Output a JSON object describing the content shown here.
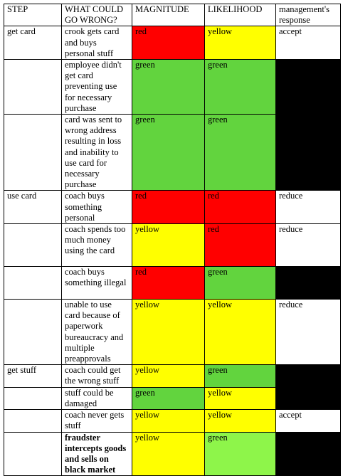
{
  "table": {
    "header": [
      "STEP",
      "WHAT COULD GO WRONG?",
      "MAGNITUDE",
      "LIKELIHOOD",
      "management's response"
    ],
    "rows": [
      {
        "step": "get card",
        "risk": "crook gets card and buys personal stuff",
        "magnitude": {
          "text": "red",
          "color": "#ff0000"
        },
        "likelihood": {
          "text": "yellow",
          "color": "#ffff00"
        },
        "response": {
          "text": "accept",
          "color": "#ffffff"
        }
      },
      {
        "risk": "employee didn't get card preventing use for necessary purchase",
        "magnitude": {
          "text": "green",
          "color": "#62d43e"
        },
        "likelihood": {
          "text": "green",
          "color": "#62d43e"
        },
        "response": {
          "color": "#000000"
        }
      },
      {
        "risk": "card was sent to wrong address resulting in loss and inability to use card for necessary purchase",
        "magnitude": {
          "text": "green",
          "color": "#62d43e"
        },
        "likelihood": {
          "text": "green",
          "color": "#62d43e"
        },
        "response": {
          "color": "#000000"
        }
      },
      {
        "step": "use card",
        "risk": "coach buys something personal",
        "magnitude": {
          "text": "red",
          "color": "#ff0000"
        },
        "likelihood": {
          "text": "red",
          "color": "#ff0000"
        },
        "response": {
          "text": "reduce",
          "color": "#ffffff"
        }
      },
      {
        "risk": "coach spends too much money using the card",
        "magnitude": {
          "text": "yellow",
          "color": "#ffff00"
        },
        "likelihood": {
          "text": "red",
          "color": "#ff0000"
        },
        "response": {
          "text": "reduce",
          "color": "#ffffff"
        }
      },
      {
        "risk": "coach buys something illegal",
        "magnitude": {
          "text": "red",
          "color": "#ff0000"
        },
        "likelihood": {
          "text": "green",
          "color": "#62d43e"
        },
        "response": {
          "color": "#000000"
        }
      },
      {
        "risk": "unable to use card because of paperwork bureaucracy and multiple preapprovals",
        "magnitude": {
          "text": "yellow",
          "color": "#ffff00"
        },
        "likelihood": {
          "text": "yellow",
          "color": "#ffff00"
        },
        "response": {
          "text": "reduce",
          "color": "#ffffff"
        }
      },
      {
        "step": "get stuff",
        "risk": "coach could get the wrong stuff",
        "magnitude": {
          "text": "yellow",
          "color": "#ffff00"
        },
        "likelihood": {
          "text": "green",
          "color": "#62d43e"
        },
        "response": {
          "color": "#000000"
        }
      },
      {
        "risk": "stuff could be damaged",
        "magnitude": {
          "text": "green",
          "color": "#62d43e"
        },
        "likelihood": {
          "text": "yellow",
          "color": "#ffff00"
        },
        "response": {
          "color": "#000000"
        }
      },
      {
        "risk": "coach never gets stuff",
        "magnitude": {
          "text": "yellow",
          "color": "#ffff00"
        },
        "likelihood": {
          "text": "yellow",
          "color": "#ffff00"
        },
        "response": {
          "text": "accept",
          "color": "#ffffff"
        }
      },
      {
        "risk": "fraudster intercepts goods and sells on black market",
        "bold": true,
        "magnitude": {
          "text": "yellow",
          "color": "#ffff00"
        },
        "likelihood": {
          "text": "green",
          "color": "#8ef54a"
        },
        "response": {
          "color": "#000000"
        }
      }
    ]
  }
}
